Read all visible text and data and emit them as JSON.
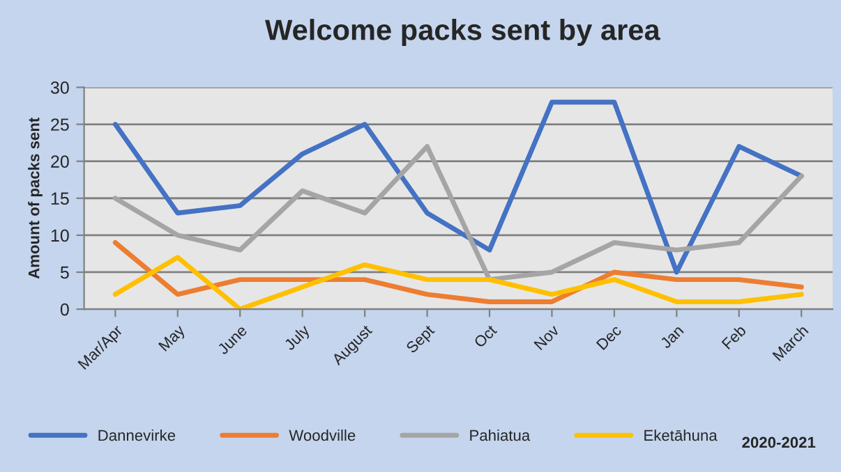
{
  "chart_data": {
    "type": "line",
    "title": "Welcome packs sent by area",
    "ylabel": "Amount of packs sent",
    "categories": [
      "Mar/Apr",
      "May",
      "June",
      "July",
      "August",
      "Sept",
      "Oct",
      "Nov",
      "Dec",
      "Jan",
      "Feb",
      "March"
    ],
    "series": [
      {
        "name": "Dannevirke",
        "color": "#4472c4",
        "values": [
          25,
          13,
          14,
          21,
          25,
          13,
          8,
          28,
          28,
          5,
          22,
          18
        ]
      },
      {
        "name": "Woodville",
        "color": "#ed7d31",
        "values": [
          9,
          2,
          4,
          4,
          4,
          2,
          1,
          1,
          5,
          4,
          4,
          3
        ]
      },
      {
        "name": "Pahiatua",
        "color": "#a5a5a5",
        "values": [
          15,
          10,
          8,
          16,
          13,
          22,
          4,
          5,
          9,
          8,
          9,
          18
        ]
      },
      {
        "name": "Eketāhuna",
        "color": "#ffc000",
        "values": [
          2,
          7,
          0,
          3,
          6,
          4,
          4,
          2,
          4,
          1,
          1,
          2
        ]
      }
    ],
    "ylim": [
      0,
      30
    ],
    "yticks": [
      0,
      5,
      10,
      15,
      20,
      25,
      30
    ],
    "grid": "y",
    "legend": "bottom",
    "marker": "none",
    "line_style": "solid",
    "annotations": [
      "2020-2021"
    ]
  }
}
